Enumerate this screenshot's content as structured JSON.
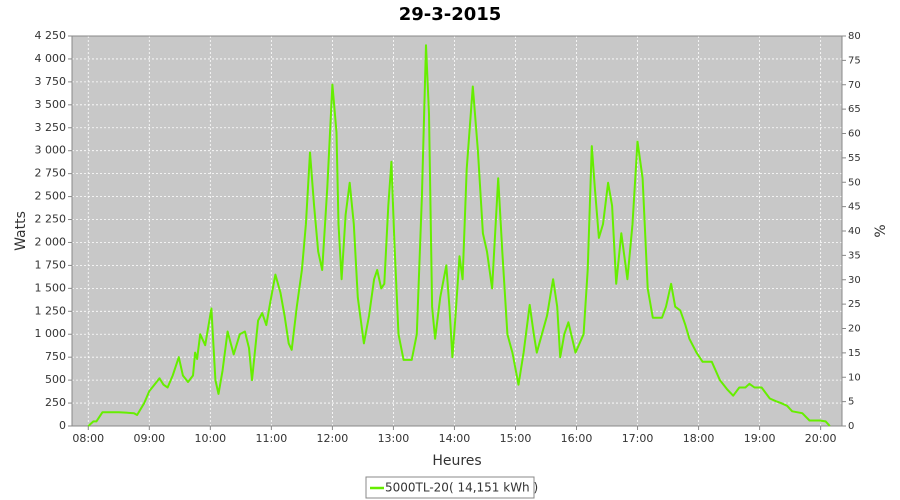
{
  "chart_data": {
    "type": "line",
    "title": "29-3-2015",
    "x_label": "Heures",
    "y_label": "Watts",
    "y2_label": "%",
    "grid": true,
    "legend": "bottom",
    "xlim": [
      "07:44",
      "20:21"
    ],
    "xticks": [
      "08:00",
      "09:00",
      "10:00",
      "11:00",
      "12:00",
      "13:00",
      "14:00",
      "15:00",
      "16:00",
      "17:00",
      "18:00",
      "19:00",
      "20:00"
    ],
    "ylim": [
      0,
      4250
    ],
    "yticks": [
      0,
      250,
      500,
      750,
      {
        "value": 1000,
        "label": "1 000"
      },
      {
        "value": 1250,
        "label": "1 250"
      },
      {
        "value": 1500,
        "label": "1 500"
      },
      {
        "value": 1750,
        "label": "1 750"
      },
      {
        "value": 2000,
        "label": "2 000"
      },
      {
        "value": 2250,
        "label": "2 250"
      },
      {
        "value": 2500,
        "label": "2 500"
      },
      {
        "value": 2750,
        "label": "2 750"
      },
      {
        "value": 3000,
        "label": "3 000"
      },
      {
        "value": 3250,
        "label": "3 250"
      },
      {
        "value": 3500,
        "label": "3 500"
      },
      {
        "value": 3750,
        "label": "3 750"
      },
      {
        "value": 4000,
        "label": "4 000"
      },
      {
        "value": 4250,
        "label": "4 250"
      }
    ],
    "y2lim": [
      0,
      80
    ],
    "y2ticks": [
      0,
      5,
      10,
      15,
      20,
      25,
      30,
      35,
      40,
      45,
      50,
      55,
      60,
      65,
      70,
      75,
      80
    ],
    "x": [
      "08:00",
      "08:05",
      "08:08",
      "08:14",
      "08:30",
      "08:45",
      "08:48",
      "08:55",
      "09:00",
      "09:05",
      "09:10",
      "09:14",
      "09:18",
      "09:23",
      "09:29",
      "09:33",
      "09:38",
      "09:43",
      "09:45",
      "09:47",
      "09:50",
      "09:55",
      "10:01",
      "10:05",
      "10:08",
      "10:12",
      "10:17",
      "10:23",
      "10:29",
      "10:34",
      "10:38",
      "10:41",
      "10:47",
      "10:51",
      "10:55",
      "10:59",
      "11:04",
      "11:09",
      "11:13",
      "11:17",
      "11:20",
      "11:25",
      "11:30",
      "11:34",
      "11:38",
      "11:42",
      "11:46",
      "11:50",
      "11:55",
      "12:00",
      "12:04",
      "12:06",
      "12:09",
      "12:13",
      "12:17",
      "12:21",
      "12:25",
      "12:31",
      "12:36",
      "12:41",
      "12:44",
      "12:48",
      "12:51",
      "12:55",
      "12:58",
      "13:01",
      "13:05",
      "13:10",
      "13:18",
      "13:23",
      "13:28",
      "13:32",
      "13:35",
      "13:38",
      "13:41",
      "13:46",
      "13:52",
      "13:55",
      "13:58",
      "14:01",
      "14:05",
      "14:08",
      "14:12",
      "14:18",
      "14:23",
      "14:28",
      "14:32",
      "14:37",
      "14:43",
      "14:47",
      "14:52",
      "14:57",
      "15:03",
      "15:08",
      "15:14",
      "15:18",
      "15:21",
      "15:26",
      "15:31",
      "15:37",
      "15:41",
      "15:44",
      "15:48",
      "15:52",
      "15:59",
      "16:03",
      "16:07",
      "16:11",
      "16:15",
      "16:18",
      "16:22",
      "16:26",
      "16:31",
      "16:35",
      "16:39",
      "16:44",
      "16:50",
      "16:55",
      "17:00",
      "17:05",
      "17:10",
      "17:15",
      "17:24",
      "17:28",
      "17:33",
      "17:37",
      "17:42",
      "17:47",
      "17:51",
      "17:58",
      "18:04",
      "18:13",
      "18:21",
      "18:28",
      "18:34",
      "18:40",
      "18:46",
      "18:50",
      "18:55",
      "19:02",
      "19:10",
      "19:16",
      "19:21",
      "19:27",
      "19:32",
      "19:42",
      "19:49",
      "19:59",
      "20:05",
      "20:09"
    ],
    "series": [
      {
        "name": "5000TL-20( 14,151 kWh )",
        "color": "#66ee00",
        "values": [
          0,
          50,
          50,
          150,
          150,
          140,
          120,
          250,
          380,
          450,
          520,
          450,
          420,
          550,
          750,
          550,
          480,
          550,
          800,
          730,
          1000,
          880,
          1280,
          500,
          350,
          600,
          1030,
          780,
          1000,
          1030,
          850,
          500,
          1150,
          1230,
          1100,
          1350,
          1650,
          1450,
          1200,
          900,
          830,
          1300,
          1700,
          2200,
          2980,
          2400,
          1900,
          1700,
          2600,
          3720,
          3200,
          2200,
          1600,
          2300,
          2650,
          2200,
          1400,
          900,
          1200,
          1600,
          1700,
          1500,
          1550,
          2400,
          2880,
          2000,
          1000,
          720,
          720,
          1000,
          2500,
          4150,
          3400,
          1300,
          950,
          1400,
          1750,
          1300,
          750,
          1200,
          1850,
          1600,
          2800,
          3700,
          3000,
          2100,
          1900,
          1500,
          2700,
          1900,
          1000,
          800,
          450,
          800,
          1320,
          1000,
          800,
          1000,
          1200,
          1600,
          1300,
          750,
          1000,
          1130,
          800,
          900,
          1000,
          1700,
          3050,
          2600,
          2050,
          2200,
          2650,
          2400,
          1550,
          2100,
          1600,
          2200,
          3100,
          2700,
          1500,
          1180,
          1180,
          1300,
          1550,
          1300,
          1260,
          1100,
          950,
          800,
          700,
          700,
          500,
          400,
          330,
          420,
          420,
          460,
          420,
          420,
          300,
          270,
          250,
          220,
          160,
          140,
          60,
          60,
          50,
          0
        ]
      }
    ]
  }
}
